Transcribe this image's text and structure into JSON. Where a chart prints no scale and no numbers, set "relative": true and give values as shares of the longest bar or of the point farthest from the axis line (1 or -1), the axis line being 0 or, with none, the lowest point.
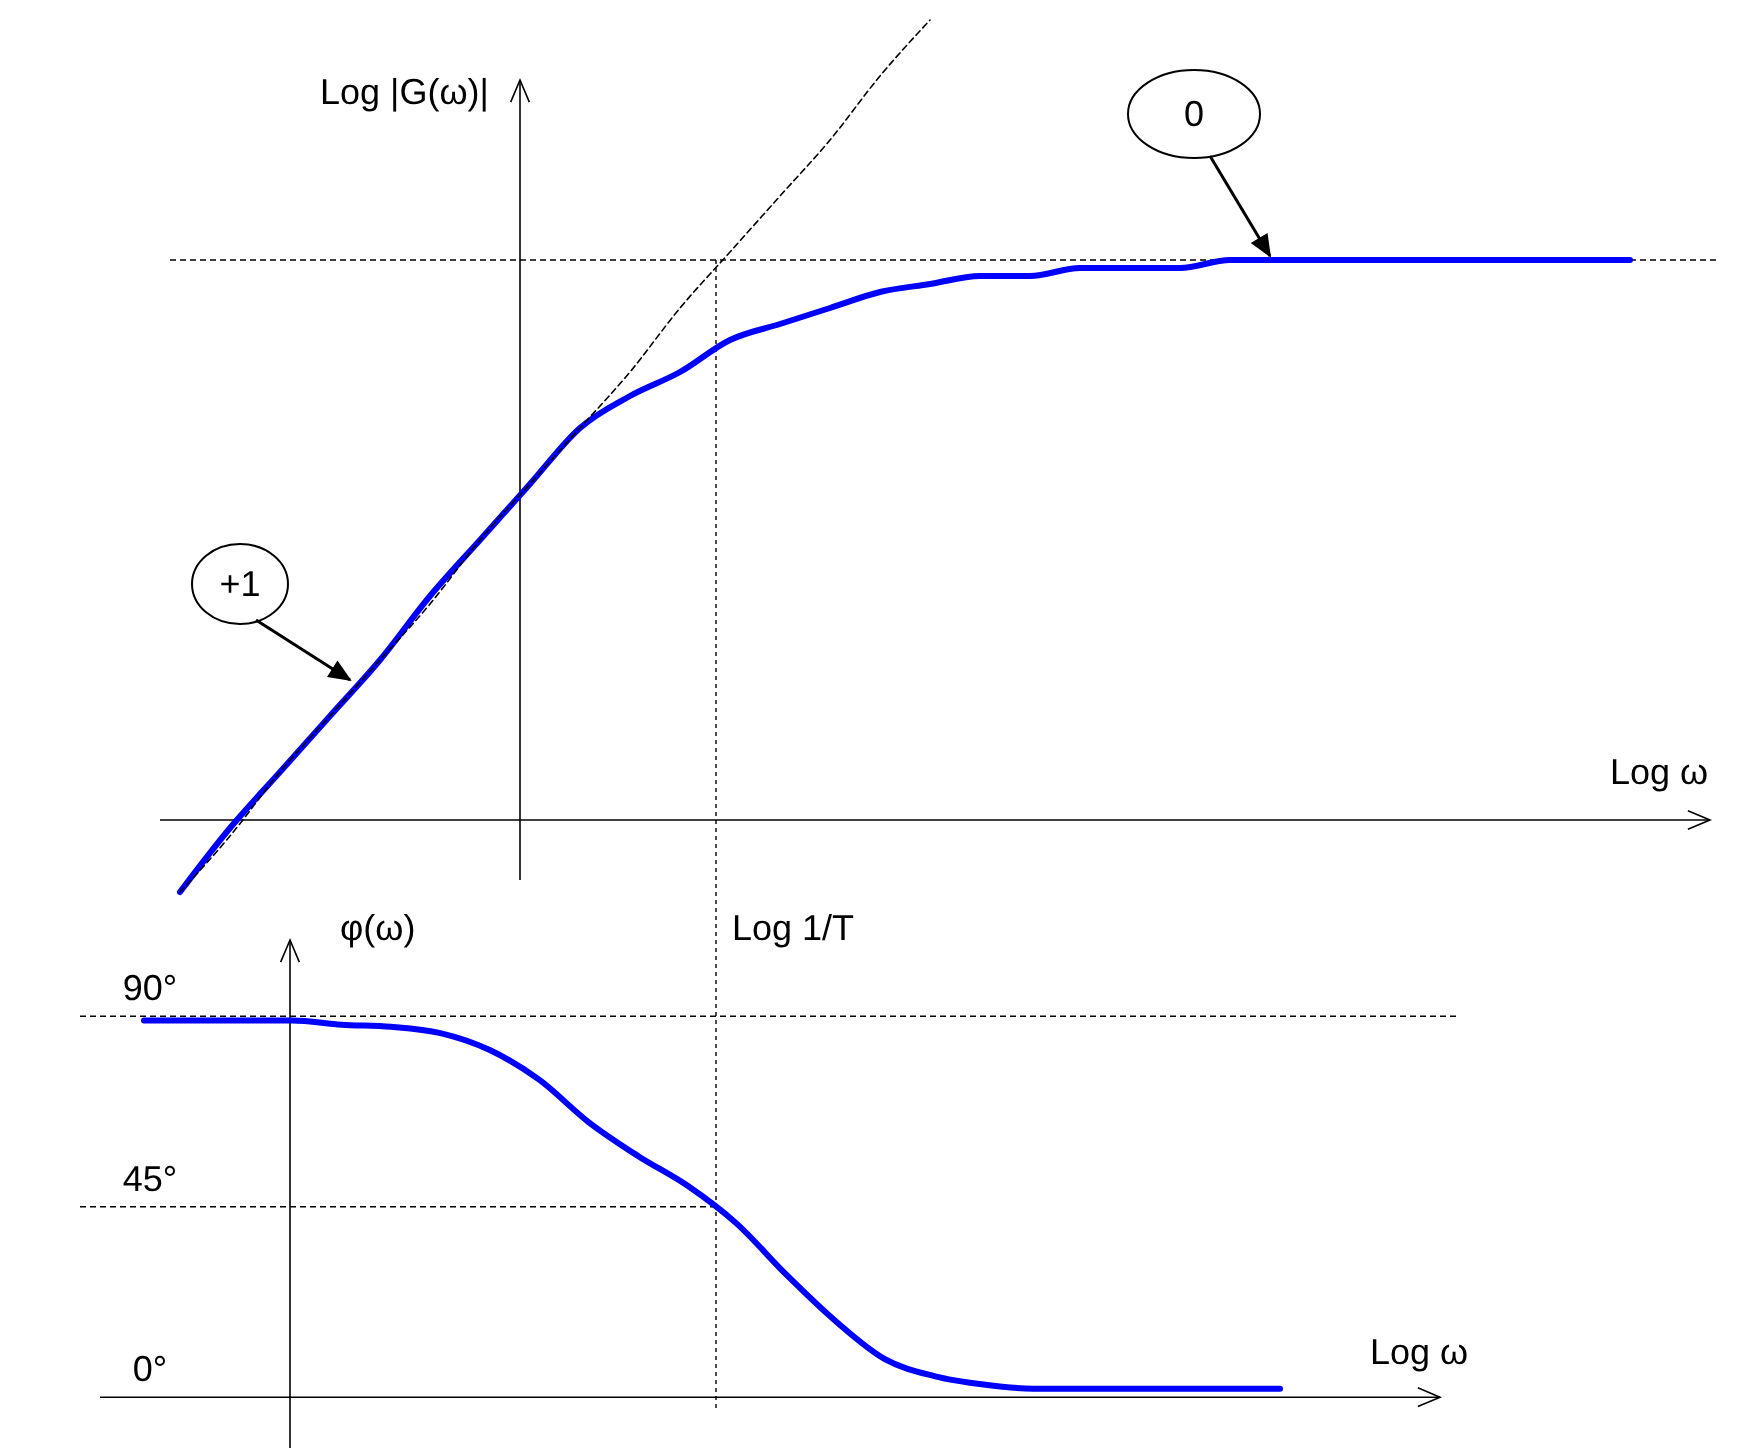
{
  "chart_data": [
    {
      "type": "line",
      "ylabel": "Log |G(ω)|",
      "xlabel": "Log ω",
      "relative": true,
      "tick_labels": false,
      "categories": [
        null,
        null,
        null,
        null,
        null,
        null,
        null,
        null,
        null,
        null,
        null,
        null,
        null,
        null,
        null,
        null,
        null,
        null,
        null,
        null,
        null,
        null,
        null,
        null,
        null,
        null,
        null,
        null,
        null,
        null
      ],
      "series": [
        {
          "color": "#0000ff",
          "values": [
            -0.09,
            -0.01,
            0.06,
            0.13,
            0.2,
            0.28,
            0.35,
            0.42,
            0.49,
            0.53,
            0.56,
            0.6,
            0.62,
            0.64,
            0.66,
            0.67,
            0.68,
            0.68,
            0.69,
            0.69,
            0.69,
            0.7,
            0.7,
            0.7,
            0.7,
            0.7,
            0.7,
            0.7,
            0.7,
            0.7
          ]
        },
        {
          "color": "#000000",
          "line_style": "dashed",
          "values": [
            -0.09,
            -0.02,
            0.06,
            0.13,
            0.2,
            0.27,
            0.35,
            0.42,
            0.49,
            0.56,
            0.64,
            0.71,
            0.78,
            0.85,
            0.93,
            1.0,
            null,
            null,
            null,
            null,
            null,
            null,
            null,
            null,
            null,
            null,
            null,
            null,
            null,
            null
          ]
        }
      ],
      "ref_lines": [
        {
          "axis": "y",
          "value": 0.7,
          "line_style": "dashed",
          "color": "#000000"
        }
      ],
      "annotations": [
        "+1",
        "0"
      ]
    },
    {
      "type": "line",
      "ylabel": "φ(ω)",
      "xlabel": "Log ω",
      "tick_labels": "y",
      "categories": [
        null,
        null,
        null,
        null,
        null,
        null,
        null,
        null,
        null,
        null,
        null,
        null,
        null,
        null,
        null,
        null,
        null,
        null,
        null,
        null,
        null,
        null,
        null,
        null
      ],
      "series": [
        {
          "color": "#0000ff",
          "values": [
            89,
            89,
            89,
            89,
            88,
            87.5,
            86,
            82,
            75,
            65,
            57,
            50,
            41,
            29,
            18,
            9,
            5,
            3,
            2,
            2,
            2,
            2,
            2,
            2
          ]
        }
      ],
      "ylim": [
        -12,
        108
      ],
      "yticks": [
        {
          "value": 0,
          "label": "0°"
        },
        {
          "value": 45,
          "label": "45°"
        },
        {
          "value": 90,
          "label": "90°"
        }
      ],
      "ref_lines": [
        {
          "axis": "y",
          "value": 90,
          "line_style": "dashed",
          "color": "#000000"
        },
        {
          "axis": "y",
          "value": 45,
          "line_style": "dashed",
          "color": "#000000"
        }
      ],
      "annotations": [
        "Log 1/T"
      ]
    }
  ]
}
